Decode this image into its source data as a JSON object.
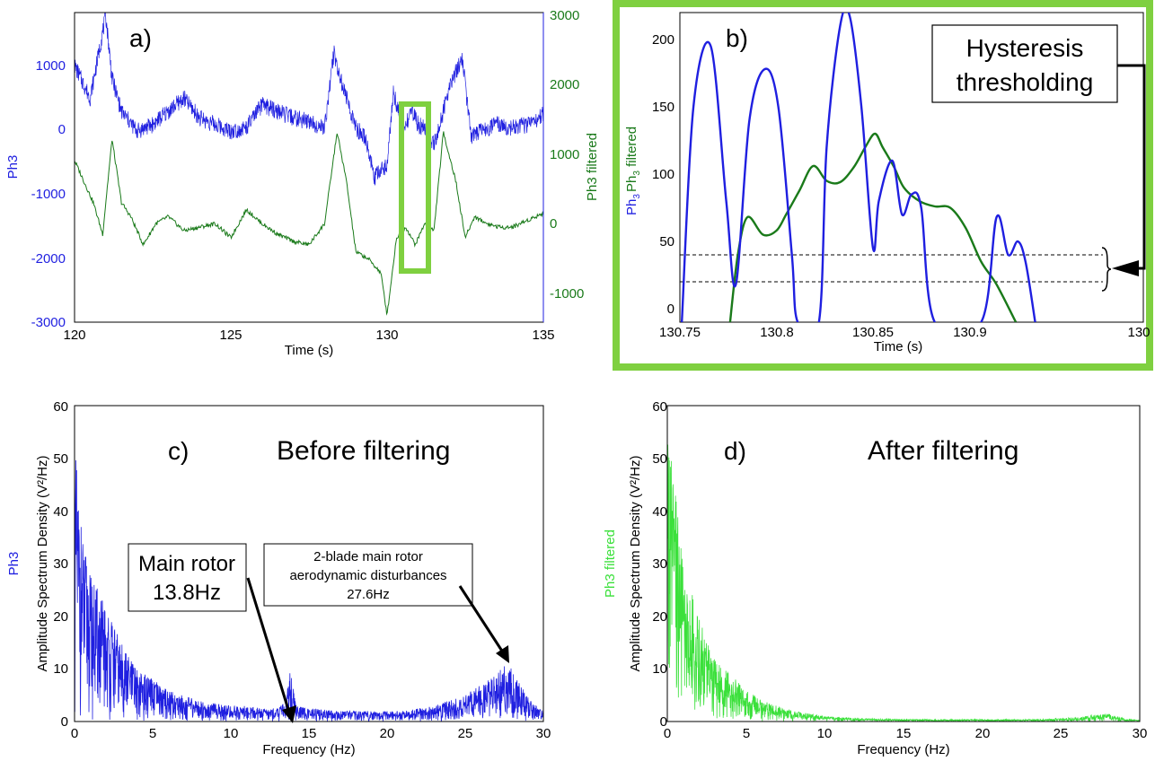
{
  "colors": {
    "blue": "#1f1fe0",
    "dark_green": "#1a7a1a",
    "green_box": "#7fd040",
    "light_green": "#3be03b",
    "black": "#000000"
  },
  "chart_data": [
    {
      "panel": "a)",
      "type": "line",
      "xlabel": "Time (s)",
      "ylabel_left": "Ph3",
      "ylabel_right": "Ph3 filtered",
      "xlim": [
        120,
        135
      ],
      "ylim_left": [
        -3000,
        1700
      ],
      "ylim_right": [
        -1400,
        3000
      ],
      "xticks": [
        "120",
        "125",
        "130",
        "135"
      ],
      "yticks_left": [
        "-3000",
        "-2000",
        "-1000",
        "0",
        "1000"
      ],
      "yticks_right": [
        "-1000",
        "0",
        "1000",
        "2000",
        "3000"
      ],
      "series": [
        {
          "name": "Ph3",
          "axis": "left",
          "color": "#1f1fe0",
          "x": [
            120,
            120.5,
            121,
            121.2,
            121.5,
            122,
            122.5,
            123,
            123.5,
            124,
            124.5,
            125,
            125.5,
            126,
            126.5,
            127,
            127.5,
            128,
            128.3,
            128.5,
            129,
            129.3,
            129.6,
            130,
            130.2,
            130.5,
            130.8,
            131,
            131.3,
            131.5,
            131.8,
            132,
            132.4,
            132.7,
            133,
            133.5,
            134,
            134.5,
            135
          ],
          "y": [
            900,
            400,
            1650,
            700,
            200,
            -100,
            0,
            200,
            400,
            100,
            0,
            -100,
            -50,
            300,
            200,
            100,
            50,
            -50,
            1100,
            700,
            -50,
            -200,
            -800,
            -600,
            500,
            -100,
            200,
            0,
            -100,
            -300,
            200,
            600,
            1000,
            -200,
            -100,
            0,
            -50,
            0,
            150
          ]
        },
        {
          "name": "Ph3 filtered",
          "axis": "right",
          "color": "#1a7a1a",
          "x": [
            120,
            120.3,
            120.6,
            120.9,
            121.2,
            121.5,
            121.8,
            122.2,
            122.6,
            123,
            123.5,
            124,
            124.5,
            125,
            125.5,
            126,
            126.5,
            127,
            127.5,
            128,
            128.4,
            128.7,
            129,
            129.4,
            129.8,
            130,
            130.3,
            130.6,
            130.9,
            131.2,
            131.5,
            131.8,
            132.2,
            132.5,
            132.8,
            133.2,
            133.6,
            134,
            134.5,
            135
          ],
          "y": [
            900,
            600,
            300,
            -150,
            1200,
            300,
            100,
            -300,
            0,
            100,
            -100,
            -50,
            0,
            -200,
            200,
            0,
            -150,
            -250,
            -300,
            0,
            1300,
            600,
            -400,
            -500,
            -700,
            -1300,
            -200,
            -50,
            -300,
            0,
            -100,
            1300,
            600,
            -200,
            100,
            0,
            -50,
            -50,
            50,
            150
          ]
        }
      ]
    },
    {
      "panel": "b)",
      "type": "line",
      "xlabel": "Time (s)",
      "ylabel": "Ph3  Ph3 filtered",
      "xlim": [
        130.75,
        130.99
      ],
      "ylim": [
        -10,
        220
      ],
      "xticks": [
        "130.75",
        "130.8",
        "130.85",
        "130.9",
        "130"
      ],
      "yticks": [
        "0",
        "50",
        "100",
        "150",
        "200"
      ],
      "thresholds": [
        20,
        40
      ],
      "annotation": "Hysteresis thresholding",
      "series": [
        {
          "name": "Ph3",
          "color": "#1f1fe0",
          "x": [
            130.751,
            130.757,
            130.766,
            130.774,
            130.779,
            130.786,
            130.794,
            130.801,
            130.808,
            130.811,
            130.822,
            130.826,
            130.833,
            130.838,
            130.844,
            130.85,
            130.853,
            130.86,
            130.865,
            130.87,
            130.875,
            130.882,
            130.906,
            130.914,
            130.92,
            130.925,
            130.929,
            130.934
          ],
          "y": [
            -10,
            150,
            195,
            80,
            18,
            140,
            178,
            150,
            40,
            -10,
            -10,
            120,
            210,
            217,
            150,
            45,
            80,
            110,
            70,
            85,
            75,
            -10,
            -10,
            68,
            40,
            50,
            35,
            -10
          ]
        },
        {
          "name": "Ph3 filtered",
          "color": "#1a7a1a",
          "x": [
            130.776,
            130.78,
            130.785,
            130.793,
            130.8,
            130.805,
            130.812,
            130.819,
            130.826,
            130.833,
            130.84,
            130.846,
            130.851,
            130.855,
            130.861,
            130.866,
            130.874,
            130.882,
            130.89,
            130.898,
            130.906,
            130.914,
            130.924
          ],
          "y": [
            -10,
            40,
            68,
            55,
            58,
            70,
            88,
            106,
            95,
            94,
            105,
            120,
            130,
            120,
            105,
            90,
            80,
            76,
            75,
            60,
            35,
            18,
            -10
          ]
        }
      ]
    },
    {
      "panel": "c)",
      "type": "line",
      "title": "Before filtering",
      "xlabel": "Frequency (Hz)",
      "ylabel": "Amplitude Spectrum Density (V²/Hz)",
      "side_label": "Ph3",
      "xlim": [
        0,
        30
      ],
      "ylim": [
        0,
        60
      ],
      "xticks": [
        "0",
        "5",
        "10",
        "15",
        "20",
        "25",
        "30"
      ],
      "yticks": [
        "0",
        "10",
        "20",
        "30",
        "40",
        "50",
        "60"
      ],
      "annotations": [
        {
          "text": [
            "Main rotor",
            "13.8Hz"
          ],
          "x": 13.8,
          "y": 9
        },
        {
          "text": [
            "2-blade main rotor",
            "aerodynamic disturbances",
            "27.6Hz"
          ],
          "x": 27.6,
          "y": 11
        }
      ],
      "series": [
        {
          "name": "Ph3",
          "color": "#1f1fe0",
          "x": [
            0,
            0.5,
            1,
            1.5,
            2,
            3,
            4,
            5,
            6,
            7,
            8,
            9,
            10,
            11,
            12,
            13,
            13.5,
            13.8,
            14.2,
            15,
            17,
            19,
            21,
            23,
            24,
            25,
            26,
            27,
            27.6,
            28,
            28.5,
            29,
            29.5,
            30
          ],
          "y": [
            53,
            35,
            28,
            25,
            22,
            15,
            10,
            8,
            6,
            5,
            4,
            3.5,
            3,
            3,
            2.5,
            2.5,
            4,
            10,
            3,
            2.5,
            2,
            2,
            2,
            3,
            4,
            5,
            7,
            9,
            11,
            10,
            7,
            5,
            3,
            2
          ]
        }
      ]
    },
    {
      "panel": "d)",
      "type": "line",
      "title": "After filtering",
      "xlabel": "Frequency (Hz)",
      "ylabel": "Amplitude Spectrum Density (V²/Hz)",
      "side_label": "Ph3 filtered",
      "xlim": [
        0,
        30
      ],
      "ylim": [
        0,
        60
      ],
      "xticks": [
        "0",
        "5",
        "10",
        "15",
        "20",
        "25",
        "30"
      ],
      "yticks": [
        "0",
        "10",
        "20",
        "30",
        "40",
        "50",
        "60"
      ],
      "series": [
        {
          "name": "Ph3 filtered",
          "color": "#3be03b",
          "x": [
            0,
            0.3,
            0.7,
            1,
            1.5,
            2,
            2.5,
            3,
            4,
            5,
            6,
            7,
            8,
            9,
            10,
            11,
            12,
            14,
            16,
            18,
            20,
            22,
            24,
            26,
            27,
            28,
            28.5,
            29,
            30
          ],
          "y": [
            60,
            48,
            40,
            30,
            25,
            20,
            16,
            12,
            9,
            6,
            4,
            3,
            2,
            1.5,
            1,
            0.8,
            0.6,
            0.5,
            0.4,
            0.4,
            0.4,
            0.4,
            0.5,
            0.8,
            1.2,
            1.5,
            1,
            0.6,
            0.3
          ]
        }
      ]
    }
  ]
}
